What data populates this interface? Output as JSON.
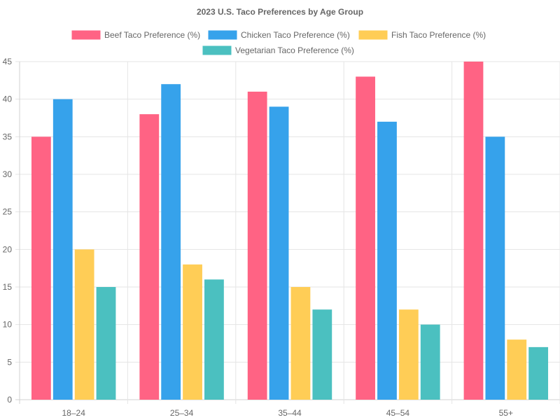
{
  "chart_data": {
    "type": "bar",
    "title": "2023 U.S. Taco Preferences by Age Group",
    "categories": [
      "18–24",
      "25–34",
      "35–44",
      "45–54",
      "55+"
    ],
    "series": [
      {
        "name": "Beef Taco Preference (%)",
        "color": "#ff6384",
        "values": [
          35,
          38,
          41,
          43,
          45
        ]
      },
      {
        "name": "Chicken Taco Preference (%)",
        "color": "#36a2eb",
        "values": [
          40,
          42,
          39,
          37,
          35
        ]
      },
      {
        "name": "Fish Taco Preference (%)",
        "color": "#ffcd56",
        "values": [
          20,
          18,
          15,
          12,
          8
        ]
      },
      {
        "name": "Vegetarian Taco Preference (%)",
        "color": "#4bc0c0",
        "values": [
          15,
          16,
          12,
          10,
          7
        ]
      }
    ],
    "xlabel": "",
    "ylabel": "",
    "ylim": [
      0,
      45
    ],
    "yticks": [
      0,
      5,
      10,
      15,
      20,
      25,
      30,
      35,
      40,
      45
    ],
    "grid": true,
    "legend_position": "top"
  }
}
